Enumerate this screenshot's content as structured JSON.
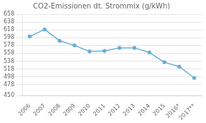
{
  "chart_data": {
    "type": "line",
    "title": "CO2-Emissionen dt. Strommix (g/kWh)",
    "categories": [
      "2006",
      "2007",
      "2008",
      "2009",
      "2010",
      "2011",
      "2012",
      "2013",
      "2014",
      "2015",
      "2016*",
      "2017**"
    ],
    "values": [
      601,
      619,
      590,
      578,
      563,
      564,
      572,
      572,
      560,
      535,
      524,
      495
    ],
    "color": "#6aaed6",
    "marker": "circle",
    "ylim": [
      450,
      660
    ],
    "yticks": [
      450,
      478,
      498,
      518,
      538,
      558,
      578,
      598,
      618,
      638,
      658
    ],
    "grid": "y"
  }
}
